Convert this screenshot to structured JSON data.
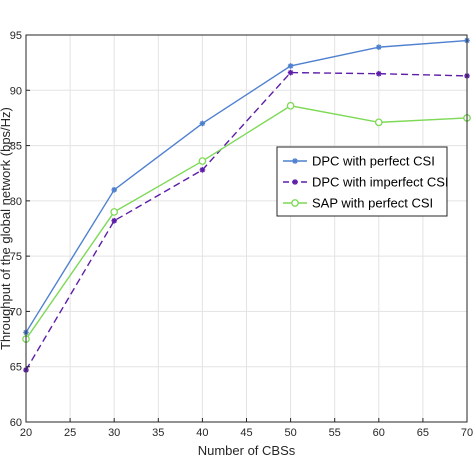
{
  "chart_data": {
    "type": "line",
    "title": "",
    "xlabel": "Number of CBSs",
    "ylabel": "Throughput of the global network (bps/Hz)",
    "x": [
      20,
      30,
      40,
      50,
      60,
      70
    ],
    "xlim": [
      20,
      70
    ],
    "ylim": [
      60,
      95
    ],
    "xticks": [
      20,
      25,
      30,
      35,
      40,
      45,
      50,
      55,
      60,
      65,
      70
    ],
    "yticks": [
      60,
      65,
      70,
      75,
      80,
      85,
      90,
      95
    ],
    "grid": true,
    "legend_position": "center-right",
    "series": [
      {
        "name": "DPC with perfect CSI",
        "values": [
          68.1,
          81.0,
          87.0,
          92.2,
          93.9,
          94.5
        ],
        "color": "#4f81d0",
        "line_style": "solid",
        "marker": "asterisk"
      },
      {
        "name": "DPC with imperfect CSI",
        "values": [
          64.7,
          78.2,
          82.8,
          91.6,
          91.5,
          91.3
        ],
        "color": "#5e1ea8",
        "line_style": "dashed",
        "marker": "asterisk"
      },
      {
        "name": "SAP with perfect CSI",
        "values": [
          67.5,
          79.0,
          83.6,
          88.6,
          87.1,
          87.5
        ],
        "color": "#7ed957",
        "line_style": "solid",
        "marker": "circle"
      }
    ]
  }
}
